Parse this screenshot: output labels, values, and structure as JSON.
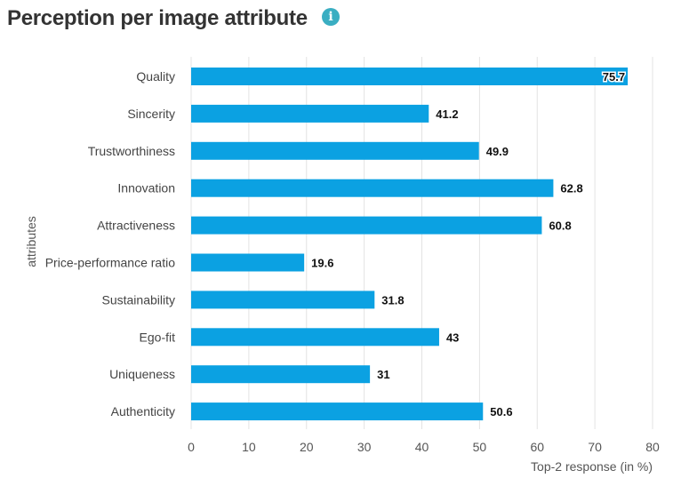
{
  "header": {
    "title": "Perception per image attribute",
    "info_icon": "info-icon"
  },
  "colors": {
    "bar": "#0ba1e2",
    "grid": "#e3e3e3",
    "title": "#333333",
    "info": "#3aaec2"
  },
  "chart_data": {
    "type": "bar",
    "orientation": "horizontal",
    "title": "Perception per image attribute",
    "xlabel": "Top-2 response (in %)",
    "ylabel": "attributes",
    "xlim": [
      0,
      80
    ],
    "xticks": [
      "0",
      "10",
      "20",
      "30",
      "40",
      "50",
      "60",
      "70",
      "80"
    ],
    "grid": true,
    "categories": [
      "Quality",
      "Sincerity",
      "Trustworthiness",
      "Innovation",
      "Attractiveness",
      "Price-performance ratio",
      "Sustainability",
      "Ego-fit",
      "Uniqueness",
      "Authenticity"
    ],
    "values": [
      75.7,
      41.2,
      49.9,
      62.8,
      60.8,
      19.6,
      31.8,
      43,
      31,
      50.6
    ],
    "value_labels": [
      "75.7",
      "41.2",
      "49.9",
      "62.8",
      "60.8",
      "19.6",
      "31.8",
      "43",
      "31",
      "50.6"
    ]
  }
}
